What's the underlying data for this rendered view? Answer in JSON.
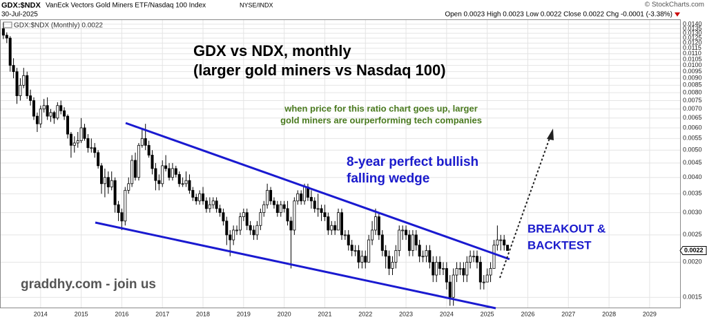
{
  "header": {
    "symbol": "GDX:$NDX",
    "name": "VanEck Vectors Gold Miners ETF/Nasdaq 100 Index",
    "exchange": "NYSE/INDX",
    "date": "30-Jul-2025",
    "source": "© StockCharts.com",
    "quote": "Open 0.0023 High 0.0023 Low 0.0022 Close 0.0022 Chg -0.0001 (-3.38%)"
  },
  "chart_data": {
    "type": "candlestick",
    "legend": "GDX:$NDX (Monthly) 0.0022",
    "title": [
      "GDX vs NDX, monthly",
      "(larger gold miners vs Nasdaq 100)"
    ],
    "note": [
      "when price for this ratio chart goes up, larger",
      "gold miners are ourperforming tech companies"
    ],
    "pattern_label": [
      "8-year perfect bullish",
      "falling wedge"
    ],
    "breakout_label": [
      "BREAKOUT &",
      "BACKTEST"
    ],
    "watermark": "graddhy.com - join us",
    "last_value": {
      "value": 0.0022,
      "label": "0.0022"
    },
    "log_scale": true,
    "grid": true,
    "color": "#000000",
    "xlim": [
      2013,
      2029.75
    ],
    "xticks": [
      2014,
      2015,
      2016,
      2017,
      2018,
      2019,
      2020,
      2021,
      2022,
      2023,
      2024,
      2025,
      2026,
      2027,
      2028,
      2029
    ],
    "ylim": [
      0.00138,
      0.01457
    ],
    "yticks": [
      {
        "value": 0.0015,
        "label": "0.0015"
      },
      {
        "value": 0.002,
        "label": "0.0020"
      },
      {
        "value": 0.0025,
        "label": "0.0025"
      },
      {
        "value": 0.003,
        "label": "0.0030"
      },
      {
        "value": 0.0035,
        "label": "0.0035"
      },
      {
        "value": 0.004,
        "label": "0.0040"
      },
      {
        "value": 0.0045,
        "label": "0.0045"
      },
      {
        "value": 0.005,
        "label": "0.0050"
      },
      {
        "value": 0.0055,
        "label": "0.0055"
      },
      {
        "value": 0.006,
        "label": "0.0060"
      },
      {
        "value": 0.0065,
        "label": "0.0065"
      },
      {
        "value": 0.007,
        "label": "0.0070"
      },
      {
        "value": 0.0075,
        "label": "0.0075"
      },
      {
        "value": 0.008,
        "label": "0.0080"
      },
      {
        "value": 0.0085,
        "label": "0.0085"
      },
      {
        "value": 0.009,
        "label": "0.0090"
      },
      {
        "value": 0.0095,
        "label": "0.0095"
      },
      {
        "value": 0.01,
        "label": "0.0100"
      },
      {
        "value": 0.0105,
        "label": "0.0105"
      },
      {
        "value": 0.011,
        "label": "0.0110"
      },
      {
        "value": 0.0115,
        "label": "0.0115"
      },
      {
        "value": 0.012,
        "label": "0.0120"
      },
      {
        "value": 0.0125,
        "label": "0.0125"
      },
      {
        "value": 0.013,
        "label": "0.0130"
      },
      {
        "value": 0.0135,
        "label": "0.0135"
      },
      {
        "value": 0.014,
        "label": "0.0140"
      }
    ],
    "x": [
      2013.083,
      2013.167,
      2013.25,
      2013.333,
      2013.417,
      2013.5,
      2013.583,
      2013.667,
      2013.75,
      2013.833,
      2013.917,
      2014,
      2014.083,
      2014.167,
      2014.25,
      2014.333,
      2014.417,
      2014.5,
      2014.583,
      2014.667,
      2014.75,
      2014.833,
      2014.917,
      2015,
      2015.083,
      2015.167,
      2015.25,
      2015.333,
      2015.417,
      2015.5,
      2015.583,
      2015.667,
      2015.75,
      2015.833,
      2015.917,
      2016,
      2016.083,
      2016.167,
      2016.25,
      2016.333,
      2016.417,
      2016.5,
      2016.583,
      2016.667,
      2016.75,
      2016.833,
      2016.917,
      2017,
      2017.083,
      2017.167,
      2017.25,
      2017.333,
      2017.417,
      2017.5,
      2017.583,
      2017.667,
      2017.75,
      2017.833,
      2017.917,
      2018,
      2018.083,
      2018.167,
      2018.25,
      2018.333,
      2018.417,
      2018.5,
      2018.583,
      2018.667,
      2018.75,
      2018.833,
      2018.917,
      2019,
      2019.083,
      2019.167,
      2019.25,
      2019.333,
      2019.417,
      2019.5,
      2019.583,
      2019.667,
      2019.75,
      2019.833,
      2019.917,
      2020,
      2020.083,
      2020.167,
      2020.25,
      2020.333,
      2020.417,
      2020.5,
      2020.583,
      2020.667,
      2020.75,
      2020.833,
      2020.917,
      2021,
      2021.083,
      2021.167,
      2021.25,
      2021.333,
      2021.417,
      2021.5,
      2021.583,
      2021.667,
      2021.75,
      2021.833,
      2021.917,
      2022,
      2022.083,
      2022.167,
      2022.25,
      2022.333,
      2022.417,
      2022.5,
      2022.583,
      2022.667,
      2022.75,
      2022.833,
      2022.917,
      2023,
      2023.083,
      2023.167,
      2023.25,
      2023.333,
      2023.417,
      2023.5,
      2023.583,
      2023.667,
      2023.75,
      2023.833,
      2023.917,
      2024,
      2024.083,
      2024.167,
      2024.25,
      2024.333,
      2024.417,
      2024.5,
      2024.583,
      2024.667,
      2024.75,
      2024.833,
      2024.917,
      2025,
      2025.083,
      2025.167,
      2025.25,
      2025.333,
      2025.417,
      2025.5
    ],
    "open": [
      0.0135,
      0.0128,
      0.0125,
      0.01,
      0.0095,
      0.0078,
      0.0085,
      0.0092,
      0.0078,
      0.0075,
      0.0066,
      0.0062,
      0.007,
      0.0072,
      0.0066,
      0.0068,
      0.0065,
      0.0072,
      0.0069,
      0.0066,
      0.0057,
      0.0052,
      0.0053,
      0.0054,
      0.006,
      0.0055,
      0.0051,
      0.0051,
      0.0049,
      0.0044,
      0.0038,
      0.004,
      0.0037,
      0.0039,
      0.0032,
      0.003,
      0.0028,
      0.0036,
      0.0038,
      0.0046,
      0.004,
      0.0052,
      0.0055,
      0.0052,
      0.0048,
      0.0043,
      0.0039,
      0.0038,
      0.0044,
      0.0043,
      0.004,
      0.0043,
      0.0041,
      0.0038,
      0.0038,
      0.0039,
      0.0036,
      0.0034,
      0.0033,
      0.0035,
      0.0033,
      0.0031,
      0.0032,
      0.0033,
      0.0031,
      0.003,
      0.0028,
      0.0025,
      0.0024,
      0.0026,
      0.0026,
      0.0029,
      0.003,
      0.0027,
      0.0026,
      0.0025,
      0.0027,
      0.003,
      0.0032,
      0.0036,
      0.0033,
      0.0032,
      0.003,
      0.0032,
      0.0031,
      0.0028,
      0.0026,
      0.0033,
      0.0035,
      0.0033,
      0.0037,
      0.0034,
      0.0033,
      0.0031,
      0.0031,
      0.003,
      0.0029,
      0.0026,
      0.0027,
      0.0026,
      0.003,
      0.0025,
      0.0025,
      0.0023,
      0.0022,
      0.0022,
      0.002,
      0.0021,
      0.002,
      0.0024,
      0.0026,
      0.0029,
      0.0025,
      0.0022,
      0.0021,
      0.0019,
      0.002,
      0.0022,
      0.0026,
      0.0026,
      0.0025,
      0.0022,
      0.0025,
      0.0023,
      0.0021,
      0.0021,
      0.0022,
      0.002,
      0.0018,
      0.002,
      0.0019,
      0.0019,
      0.0017,
      0.0015,
      0.0018,
      0.0019,
      0.0019,
      0.0018,
      0.002,
      0.0021,
      0.0021,
      0.002,
      0.0017,
      0.0017,
      0.0018,
      0.0019,
      0.0023,
      0.0024,
      0.0024,
      0.0023
    ],
    "high": [
      0.0142,
      0.0131,
      0.0127,
      0.0106,
      0.0098,
      0.009,
      0.0098,
      0.0095,
      0.0082,
      0.0077,
      0.0068,
      0.0072,
      0.0076,
      0.0077,
      0.007,
      0.0069,
      0.0074,
      0.0075,
      0.0071,
      0.0067,
      0.0058,
      0.0056,
      0.0058,
      0.0065,
      0.0062,
      0.0057,
      0.0055,
      0.0053,
      0.005,
      0.0045,
      0.0043,
      0.0042,
      0.0042,
      0.004,
      0.0033,
      0.0031,
      0.0037,
      0.004,
      0.0048,
      0.0049,
      0.0053,
      0.006,
      0.0062,
      0.0054,
      0.005,
      0.0045,
      0.0041,
      0.0046,
      0.0048,
      0.0045,
      0.0045,
      0.0044,
      0.0042,
      0.004,
      0.0042,
      0.0041,
      0.0037,
      0.0035,
      0.0036,
      0.0037,
      0.0034,
      0.0034,
      0.0034,
      0.0034,
      0.0032,
      0.0031,
      0.0029,
      0.0026,
      0.0027,
      0.0027,
      0.003,
      0.0031,
      0.0031,
      0.0028,
      0.0027,
      0.0028,
      0.0031,
      0.0033,
      0.0038,
      0.0037,
      0.0034,
      0.0033,
      0.0033,
      0.0033,
      0.0033,
      0.0029,
      0.0034,
      0.0036,
      0.0036,
      0.0038,
      0.0038,
      0.0036,
      0.0034,
      0.0035,
      0.0032,
      0.0032,
      0.003,
      0.0028,
      0.0028,
      0.0031,
      0.0031,
      0.0026,
      0.0026,
      0.0024,
      0.0023,
      0.0023,
      0.0022,
      0.0022,
      0.0025,
      0.0028,
      0.0031,
      0.003,
      0.0026,
      0.0023,
      0.0022,
      0.0021,
      0.0023,
      0.0027,
      0.0027,
      0.0027,
      0.0026,
      0.0026,
      0.0026,
      0.0024,
      0.0022,
      0.0023,
      0.0023,
      0.0021,
      0.0021,
      0.0021,
      0.002,
      0.002,
      0.0018,
      0.0019,
      0.002,
      0.002,
      0.002,
      0.0021,
      0.0022,
      0.0022,
      0.0022,
      0.0021,
      0.0018,
      0.0019,
      0.002,
      0.0024,
      0.0027,
      0.0025,
      0.0025,
      0.0023
    ],
    "low": [
      0.0124,
      0.012,
      0.0095,
      0.009,
      0.0073,
      0.0075,
      0.0083,
      0.0076,
      0.0072,
      0.0064,
      0.0058,
      0.006,
      0.0068,
      0.0064,
      0.0063,
      0.0062,
      0.0064,
      0.0067,
      0.0064,
      0.0055,
      0.0047,
      0.0049,
      0.0051,
      0.0053,
      0.0054,
      0.0049,
      0.0049,
      0.0047,
      0.0043,
      0.0035,
      0.0034,
      0.0035,
      0.0036,
      0.003,
      0.0028,
      0.0026,
      0.0027,
      0.0035,
      0.0037,
      0.0039,
      0.0039,
      0.0051,
      0.005,
      0.0047,
      0.0041,
      0.0036,
      0.0036,
      0.0037,
      0.0042,
      0.0039,
      0.0039,
      0.004,
      0.0037,
      0.0037,
      0.0037,
      0.0035,
      0.0033,
      0.0032,
      0.0032,
      0.0032,
      0.003,
      0.003,
      0.0031,
      0.003,
      0.0029,
      0.0027,
      0.0023,
      0.0021,
      0.0023,
      0.0025,
      0.0025,
      0.0028,
      0.0026,
      0.0025,
      0.0024,
      0.0024,
      0.0026,
      0.0029,
      0.0031,
      0.0032,
      0.0031,
      0.0029,
      0.0029,
      0.003,
      0.0027,
      0.0019,
      0.0025,
      0.0032,
      0.0032,
      0.0032,
      0.0033,
      0.0031,
      0.003,
      0.0029,
      0.0028,
      0.0028,
      0.0025,
      0.0025,
      0.0025,
      0.0026,
      0.0024,
      0.0024,
      0.0022,
      0.0021,
      0.0021,
      0.0019,
      0.0019,
      0.0019,
      0.002,
      0.0023,
      0.0025,
      0.0024,
      0.0021,
      0.0019,
      0.0018,
      0.0018,
      0.0019,
      0.0021,
      0.0024,
      0.0024,
      0.0021,
      0.0021,
      0.0022,
      0.002,
      0.002,
      0.002,
      0.0019,
      0.0017,
      0.0017,
      0.0018,
      0.0018,
      0.0016,
      0.0014,
      0.0014,
      0.0017,
      0.0018,
      0.0017,
      0.0017,
      0.0019,
      0.002,
      0.0019,
      0.0016,
      0.0016,
      0.0017,
      0.0017,
      0.0019,
      0.0022,
      0.0022,
      0.0022,
      0.0022
    ],
    "close": [
      0.0128,
      0.0125,
      0.01,
      0.0095,
      0.0078,
      0.0085,
      0.0092,
      0.0078,
      0.0075,
      0.0066,
      0.0062,
      0.007,
      0.0072,
      0.0066,
      0.0068,
      0.0065,
      0.0072,
      0.0069,
      0.0066,
      0.0057,
      0.0052,
      0.0053,
      0.0054,
      0.006,
      0.0055,
      0.0051,
      0.0051,
      0.0049,
      0.0044,
      0.0038,
      0.004,
      0.0037,
      0.0039,
      0.0032,
      0.003,
      0.0028,
      0.0036,
      0.0038,
      0.0046,
      0.004,
      0.0052,
      0.0055,
      0.0052,
      0.0048,
      0.0043,
      0.0039,
      0.0038,
      0.0044,
      0.0043,
      0.004,
      0.0043,
      0.0041,
      0.0038,
      0.0038,
      0.0039,
      0.0036,
      0.0034,
      0.0033,
      0.0035,
      0.0033,
      0.0031,
      0.0032,
      0.0033,
      0.0031,
      0.003,
      0.0028,
      0.0025,
      0.0024,
      0.0026,
      0.0026,
      0.0029,
      0.003,
      0.0027,
      0.0026,
      0.0025,
      0.0027,
      0.003,
      0.0032,
      0.0036,
      0.0033,
      0.0032,
      0.003,
      0.0032,
      0.0031,
      0.0028,
      0.0026,
      0.0033,
      0.0035,
      0.0033,
      0.0037,
      0.0034,
      0.0033,
      0.0031,
      0.0031,
      0.003,
      0.0029,
      0.0026,
      0.0027,
      0.0026,
      0.003,
      0.0025,
      0.0025,
      0.0023,
      0.0022,
      0.0022,
      0.002,
      0.0021,
      0.002,
      0.0024,
      0.0026,
      0.0029,
      0.0025,
      0.0022,
      0.0021,
      0.0019,
      0.002,
      0.0022,
      0.0026,
      0.0026,
      0.0025,
      0.0022,
      0.0025,
      0.0023,
      0.0021,
      0.0021,
      0.0022,
      0.002,
      0.0018,
      0.002,
      0.0019,
      0.0019,
      0.0017,
      0.0015,
      0.0018,
      0.0019,
      0.0019,
      0.0018,
      0.002,
      0.0021,
      0.0021,
      0.002,
      0.0017,
      0.0017,
      0.0018,
      0.0019,
      0.0023,
      0.0024,
      0.0024,
      0.0023,
      0.0022
    ]
  }
}
